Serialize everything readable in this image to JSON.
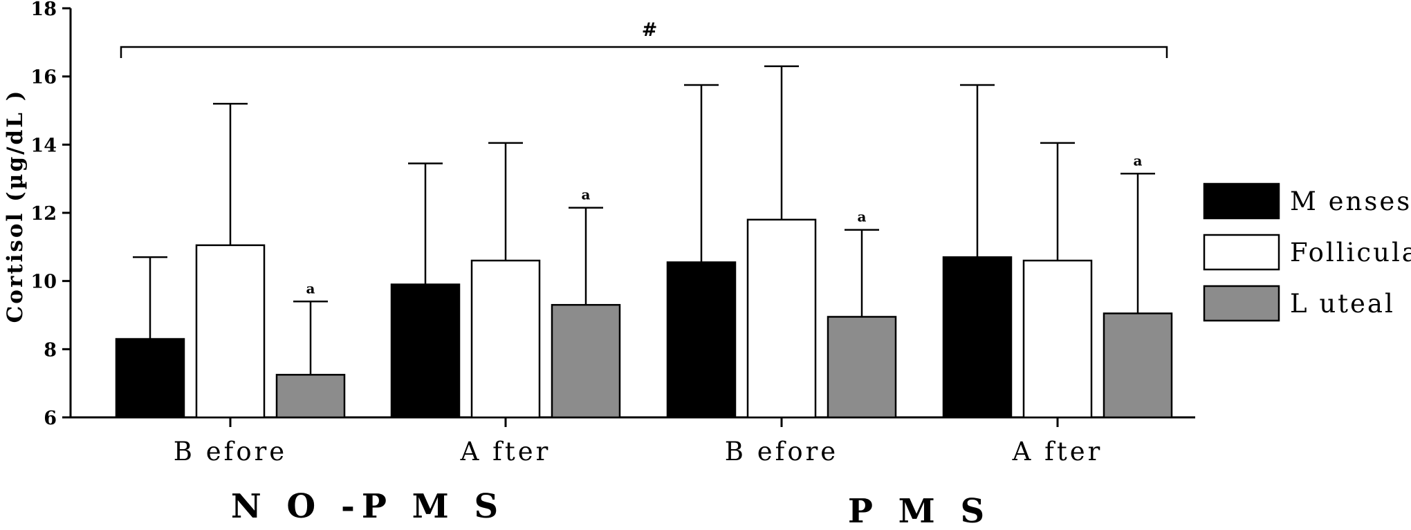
{
  "chart_data": {
    "type": "bar",
    "ylabel": "Cortisol (µg/dL )",
    "ylim": [
      6,
      18
    ],
    "yticks": [
      6,
      8,
      10,
      12,
      14,
      16,
      18
    ],
    "categories": [
      "Before",
      "After",
      "Before",
      "After"
    ],
    "category_labels": [
      "B efore",
      "A fter",
      "B efore",
      "A fter"
    ],
    "groups": [
      {
        "label": "N O -P M S",
        "name": "NO-PMS"
      },
      {
        "label": "P M S",
        "name": "PMS"
      }
    ],
    "series": [
      {
        "name": "Menses",
        "label": "M enses",
        "color": "#000000",
        "values": [
          8.3,
          9.9,
          10.55,
          10.7
        ],
        "error_upper": [
          10.7,
          13.45,
          15.75,
          15.75
        ],
        "annotations": [
          "",
          "",
          "",
          ""
        ]
      },
      {
        "name": "Follicular",
        "label": "Follicular",
        "color": "#ffffff",
        "values": [
          11.05,
          10.6,
          11.8,
          10.6
        ],
        "error_upper": [
          15.2,
          14.05,
          16.3,
          14.05
        ],
        "annotations": [
          "",
          "",
          "",
          ""
        ]
      },
      {
        "name": "Luteal",
        "label": "L uteal",
        "color": "#8c8c8c",
        "values": [
          7.25,
          9.3,
          8.95,
          9.05
        ],
        "error_upper": [
          9.4,
          12.15,
          11.5,
          13.15
        ],
        "annotations": [
          "a",
          "a",
          "a",
          "a"
        ]
      }
    ],
    "significance": {
      "symbol": "#",
      "from_category": 0,
      "to_category": 3
    },
    "legend": "right"
  }
}
